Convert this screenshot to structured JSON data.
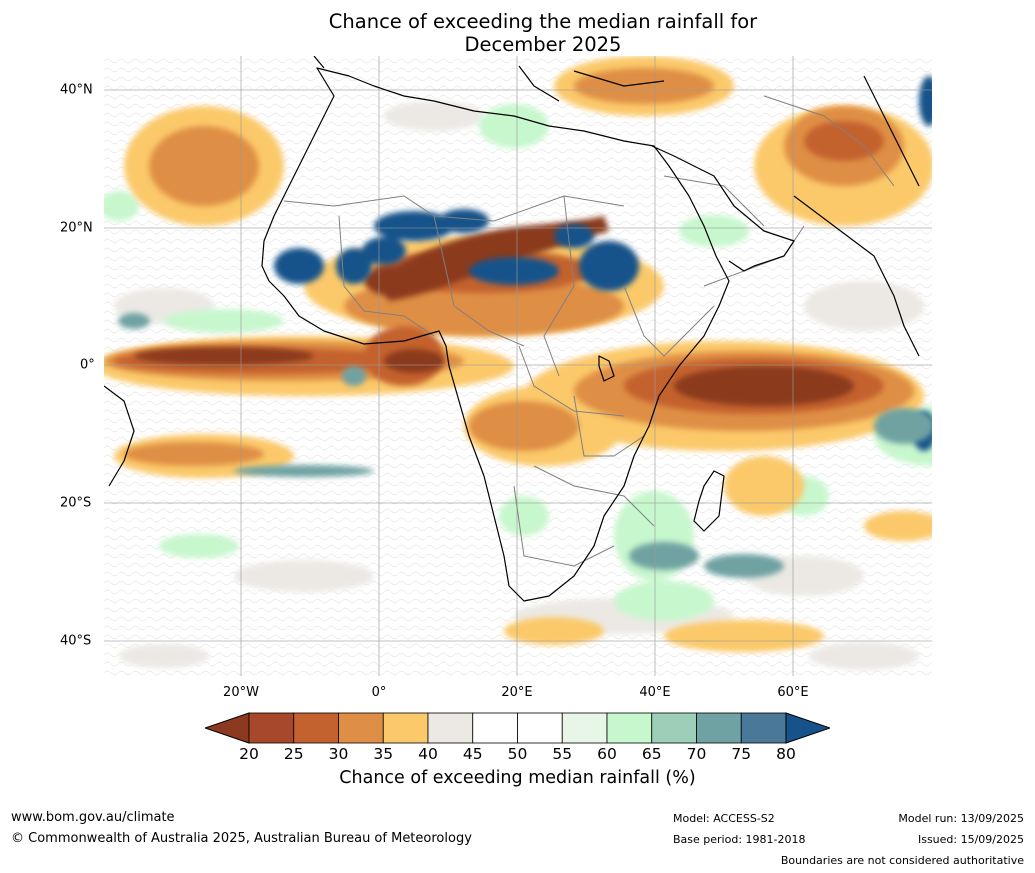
{
  "title_line1": "Chance of exceeding the median rainfall for",
  "title_line2": "December 2025",
  "lat_labels": [
    "40°N",
    "20°N",
    "0°",
    "20°S",
    "40°S"
  ],
  "lon_labels": [
    "20°W",
    "0°",
    "20°E",
    "40°E",
    "60°E"
  ],
  "legend": {
    "title": "Chance of exceeding median rainfall (%)",
    "ticks": [
      "20",
      "25",
      "30",
      "35",
      "40",
      "45",
      "50",
      "55",
      "60",
      "65",
      "70",
      "75",
      "80"
    ],
    "colors": [
      "#8b3a1f",
      "#a8482a",
      "#c4622f",
      "#df8f45",
      "#fbc96a",
      "#ece9e4",
      "#ffffff",
      "#ffffff",
      "#e8f6e8",
      "#c7f7cd",
      "#9dcfb8",
      "#6fa2a2",
      "#4a7898",
      "#17538a"
    ]
  },
  "footer": {
    "website": "www.bom.gov.au/climate",
    "copyright": "© Commonwealth of Australia 2025, Australian Bureau of Meteorology",
    "model": "Model: ACCESS-S2",
    "base_period": "Base period: 1981-2018",
    "model_run": "Model run: 13/09/2025",
    "issued": "Issued: 15/09/2025",
    "boundaries_note": "Boundaries are not considered authoritative"
  }
}
